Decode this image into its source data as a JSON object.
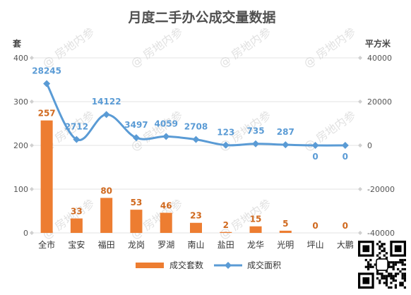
{
  "chart_data": {
    "type": "bar+line",
    "title": "月度二手办公成交量数据",
    "categories": [
      "全市",
      "宝安",
      "福田",
      "龙岗",
      "罗湖",
      "南山",
      "盐田",
      "龙华",
      "光明",
      "坪山",
      "大鹏"
    ],
    "series": [
      {
        "name": "成交套数",
        "type": "bar",
        "axis": "left",
        "color": "#ed7d31",
        "values": [
          257,
          33,
          80,
          53,
          46,
          23,
          2,
          15,
          5,
          0,
          0
        ],
        "labels": [
          "257",
          "33",
          "80",
          "53",
          "46",
          "23",
          "2",
          "15",
          "5",
          "0",
          "0"
        ]
      },
      {
        "name": "成交面积",
        "type": "line",
        "axis": "right",
        "color": "#5a9bd5",
        "values": [
          28245,
          2712,
          14122,
          3497,
          4059,
          2708,
          123,
          735,
          287,
          0,
          0
        ],
        "labels": [
          "28245",
          "2712",
          "14122",
          "3497",
          "4059",
          "2708",
          "123",
          "735",
          "287",
          "0",
          "0"
        ]
      }
    ],
    "left_axis": {
      "unit": "套",
      "ticks": [
        "0",
        "100",
        "200",
        "300",
        "400"
      ],
      "ylim": [
        0,
        400
      ]
    },
    "right_axis": {
      "unit": "平方米",
      "ticks": [
        "-40000",
        "-20000",
        "0",
        "20000",
        "40000"
      ],
      "ylim": [
        -40000,
        40000
      ]
    },
    "grid": true,
    "legend_position": "bottom"
  },
  "watermark": "@ 房地内参",
  "qr_code": "qr-code-image"
}
